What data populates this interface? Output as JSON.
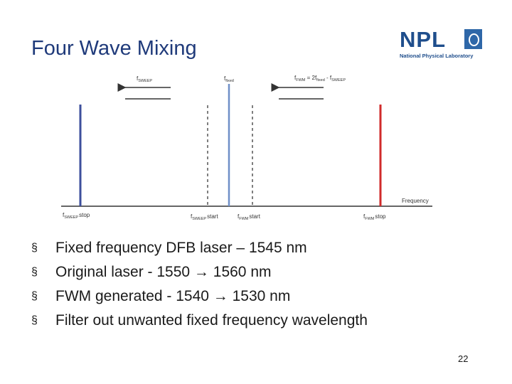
{
  "slide": {
    "title": "Four Wave Mixing",
    "page_number": "22"
  },
  "logo": {
    "text": "NPL",
    "subtitle": "National Physical Laboratory"
  },
  "diagram": {
    "labels": {
      "f_sweep": {
        "main": "f",
        "sub": "SWEEP"
      },
      "f_fixed": {
        "main": "f",
        "sub": "fixed"
      },
      "f_fwm_formula": {
        "p1": "f",
        "s1": "FWM",
        "p2": " = 2f",
        "s2": "fixed",
        "p3": " - f",
        "s3": "SWEEP"
      },
      "axis": "Frequency",
      "fsweep_stop": {
        "main": "f",
        "sub": "SWEEP",
        "tail": "stop"
      },
      "fsweep_start": {
        "main": "f",
        "sub": "SWEEP",
        "tail": "start"
      },
      "ffwm_start": {
        "main": "f",
        "sub": "FWM",
        "tail": "start"
      },
      "ffwm_stop": {
        "main": "f",
        "sub": "FWM",
        "tail": "stop"
      }
    },
    "colors": {
      "sweep_stop_line": "#3d4f9c",
      "fixed_line": "#6f8fc7",
      "fwm_stop_line": "#d02b2b",
      "dashed_lines": "#555555",
      "axis": "#333333"
    }
  },
  "bullets": [
    {
      "symbol": "§",
      "text": "Fixed frequency DFB laser – 1545 nm"
    },
    {
      "symbol": "§",
      "text": "Original laser - 1550 → 1560 nm"
    },
    {
      "symbol": "§",
      "text": "FWM generated - 1540 → 1530 nm"
    },
    {
      "symbol": "§",
      "text": "Filter out unwanted fixed frequency wavelength"
    }
  ]
}
